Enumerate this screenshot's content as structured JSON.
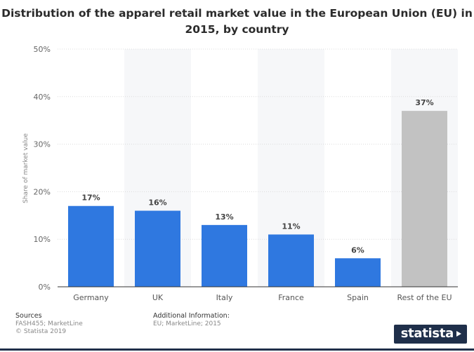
{
  "chart_data": {
    "type": "bar",
    "title": "Distribution of the apparel retail market value in the European Union (EU) in 2015, by country",
    "ylabel": "Share of market value",
    "xlabel": "",
    "categories": [
      "Germany",
      "UK",
      "Italy",
      "France",
      "Spain",
      "Rest of the EU"
    ],
    "values": [
      17,
      16,
      13,
      11,
      6,
      37
    ],
    "value_labels": [
      "17%",
      "16%",
      "13%",
      "11%",
      "6%",
      "37%"
    ],
    "bar_colors": [
      "#2f78e0",
      "#2f78e0",
      "#2f78e0",
      "#2f78e0",
      "#2f78e0",
      "#c2c2c2"
    ],
    "ylim": [
      0,
      50
    ],
    "yticks": [
      0,
      10,
      20,
      30,
      40,
      50
    ],
    "ytick_labels": [
      "0%",
      "10%",
      "20%",
      "30%",
      "40%",
      "50%"
    ],
    "grid": true,
    "legend": "none"
  },
  "footer": {
    "sources_title": "Sources",
    "sources_lines": [
      "FASH455; MarketLine",
      "© Statista 2019"
    ],
    "additional_title": "Additional Information:",
    "additional_lines": [
      "EU; MarketLine; 2015"
    ]
  },
  "brand": {
    "name": "statista",
    "color": "#1f2f4a"
  }
}
